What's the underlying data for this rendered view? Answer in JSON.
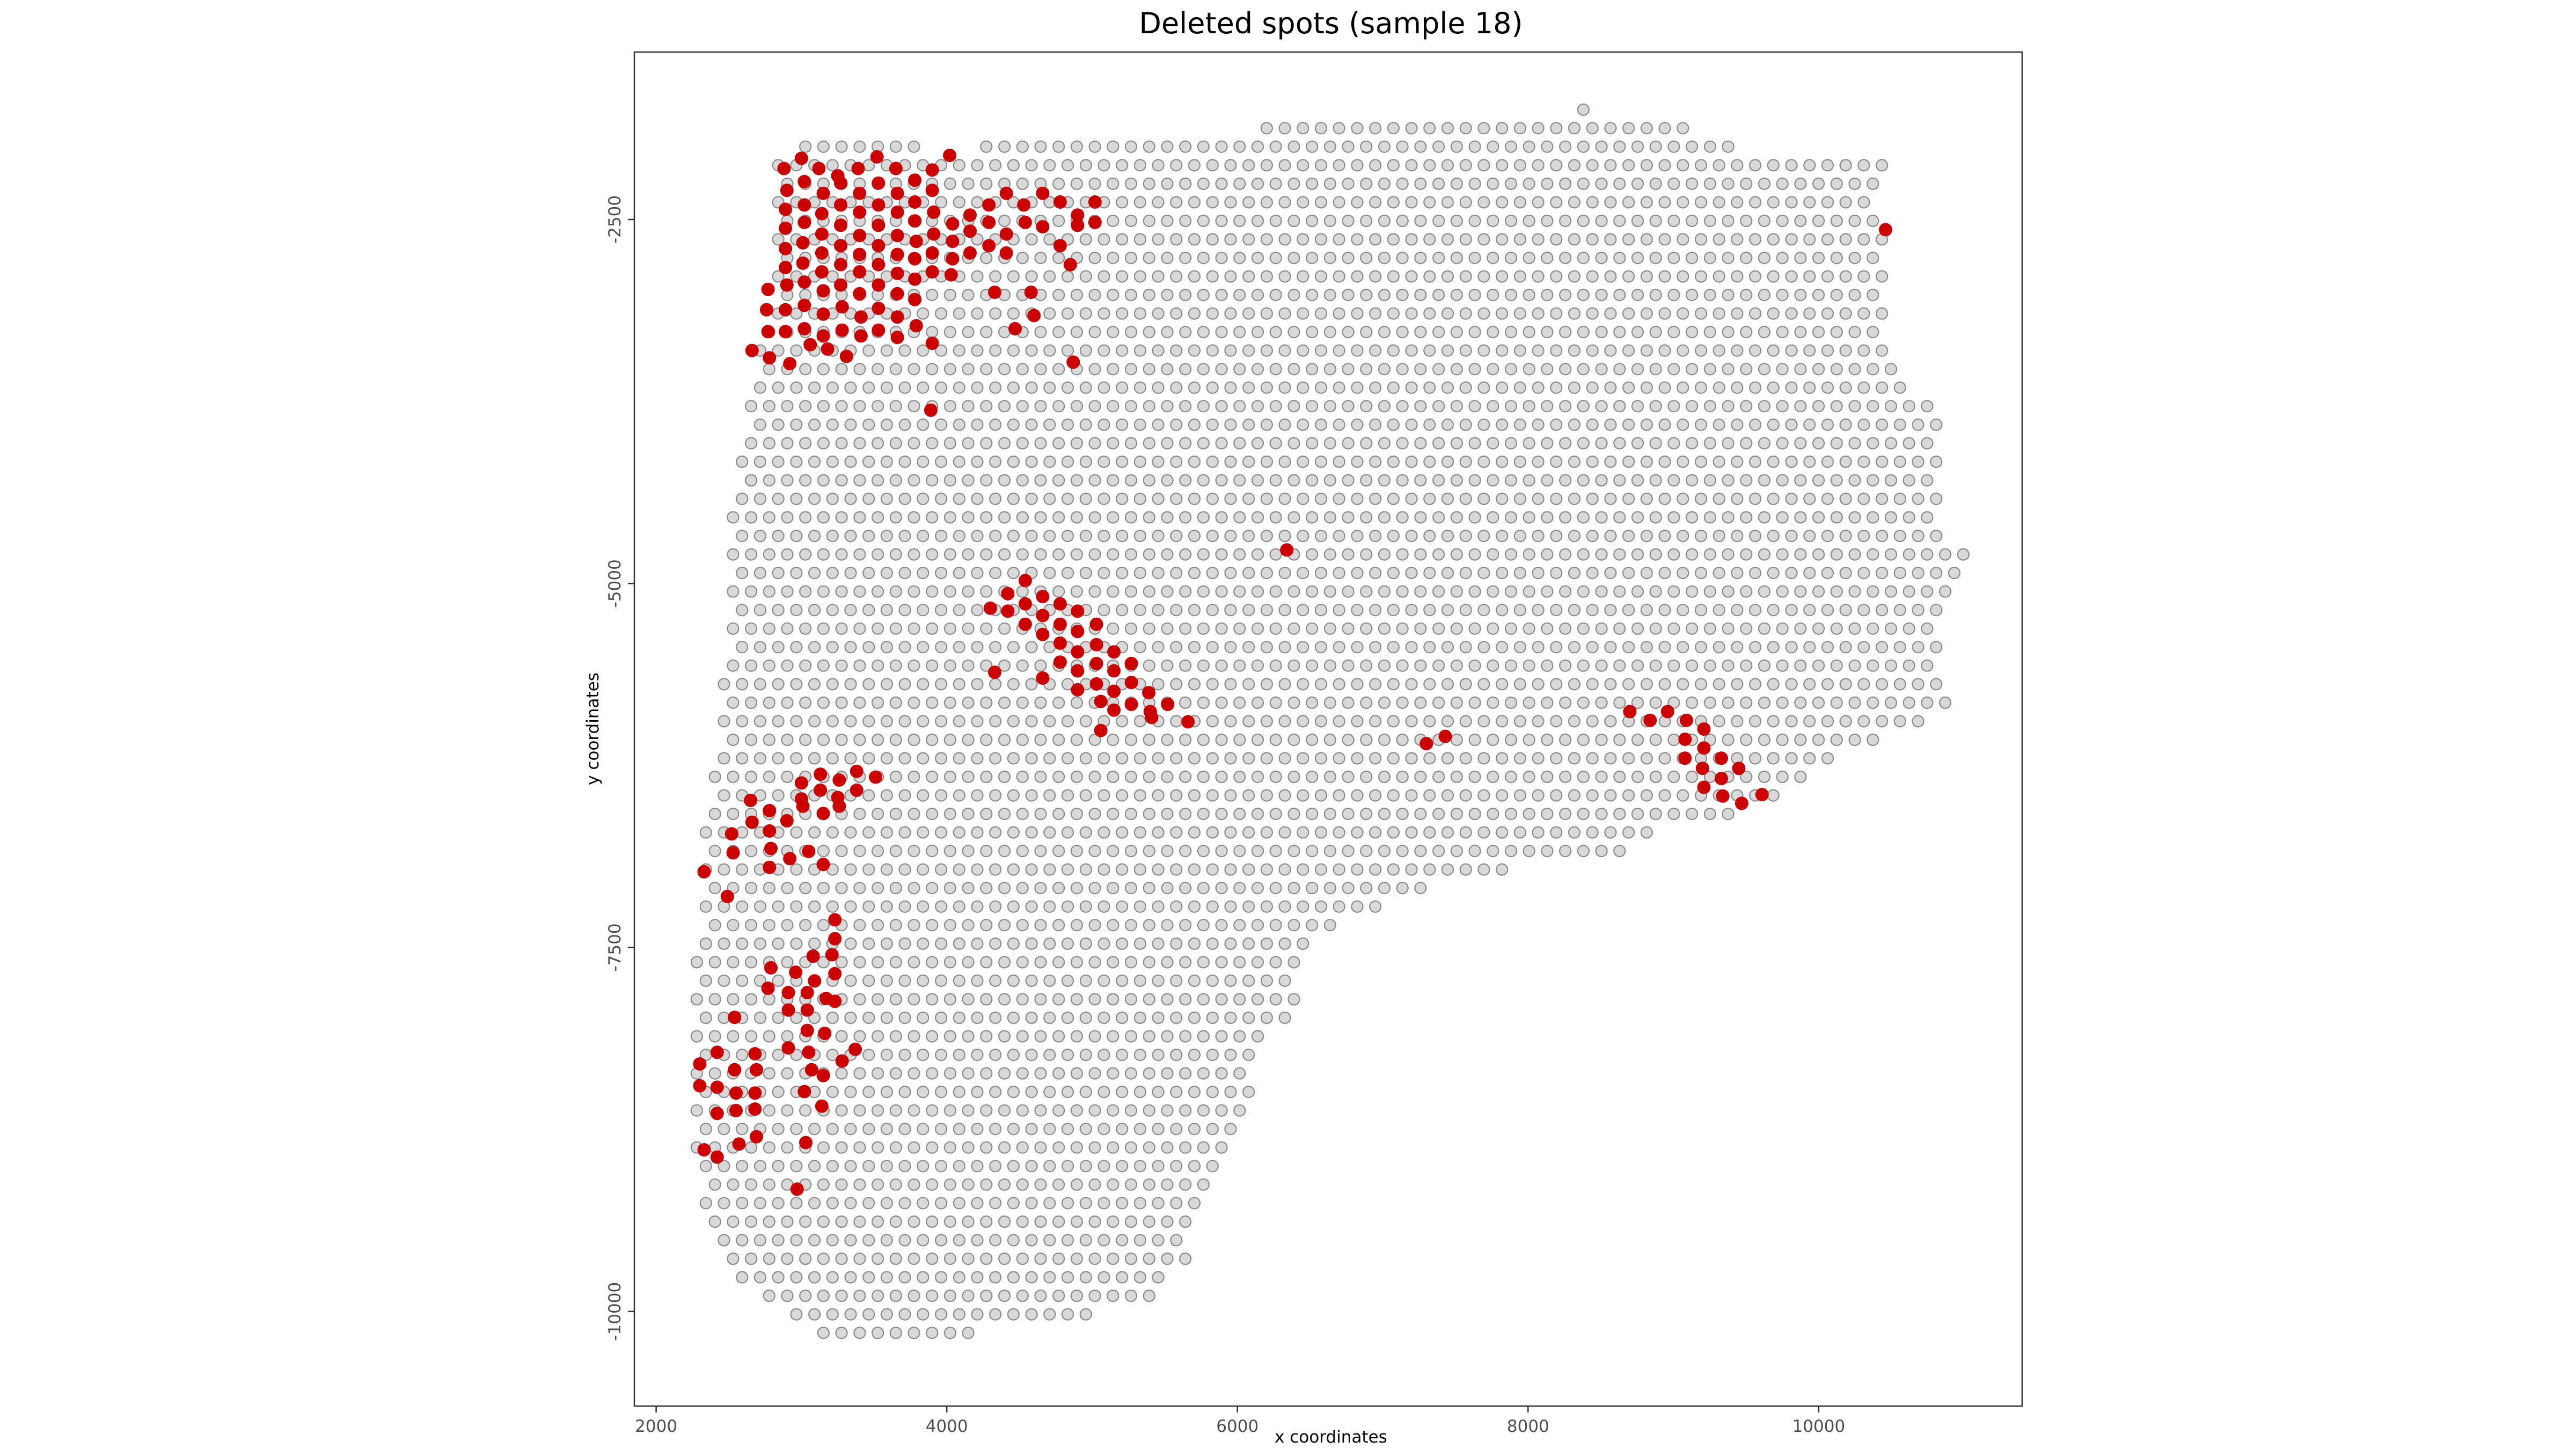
{
  "chart_data": {
    "type": "scatter",
    "title": "Deleted spots (sample 18)",
    "xlabel": "x coordinates",
    "ylabel": "y coordinates",
    "xlim": [
      1850,
      11400
    ],
    "ylim": [
      -10650,
      -1350
    ],
    "xticks": [
      2000,
      4000,
      6000,
      8000,
      10000
    ],
    "yticks": [
      -2500,
      -5000,
      -7500,
      -10000
    ],
    "grid": false,
    "legend": "none",
    "colors": {
      "kept_fill": "#d9d9d9",
      "kept_stroke": "#8c8c8c",
      "deleted_fill": "#cc0000",
      "frame": "#333333",
      "tick": "#333333"
    },
    "series": [
      {
        "role": "deleted",
        "points": [
          [
            2880,
            -2150
          ],
          [
            3000,
            -2080
          ],
          [
            3120,
            -2150
          ],
          [
            3250,
            -2200
          ],
          [
            3390,
            -2150
          ],
          [
            3520,
            -2070
          ],
          [
            3650,
            -2150
          ],
          [
            3780,
            -2230
          ],
          [
            3900,
            -2160
          ],
          [
            4020,
            -2060
          ],
          [
            2900,
            -2300
          ],
          [
            3020,
            -2240
          ],
          [
            3150,
            -2320
          ],
          [
            3270,
            -2250
          ],
          [
            3400,
            -2320
          ],
          [
            3530,
            -2250
          ],
          [
            3660,
            -2320
          ],
          [
            3780,
            -2380
          ],
          [
            3900,
            -2300
          ],
          [
            2890,
            -2430
          ],
          [
            3020,
            -2400
          ],
          [
            3140,
            -2460
          ],
          [
            3270,
            -2400
          ],
          [
            3400,
            -2450
          ],
          [
            3530,
            -2400
          ],
          [
            3660,
            -2450
          ],
          [
            3780,
            -2510
          ],
          [
            3910,
            -2450
          ],
          [
            4040,
            -2530
          ],
          [
            4160,
            -2470
          ],
          [
            4290,
            -2400
          ],
          [
            4410,
            -2320
          ],
          [
            4530,
            -2400
          ],
          [
            4660,
            -2320
          ],
          [
            4780,
            -2380
          ],
          [
            4900,
            -2470
          ],
          [
            5020,
            -2380
          ],
          [
            2890,
            -2560
          ],
          [
            3020,
            -2520
          ],
          [
            3140,
            -2600
          ],
          [
            3270,
            -2540
          ],
          [
            3400,
            -2610
          ],
          [
            3530,
            -2540
          ],
          [
            3660,
            -2610
          ],
          [
            3790,
            -2650
          ],
          [
            3910,
            -2600
          ],
          [
            4040,
            -2650
          ],
          [
            4160,
            -2580
          ],
          [
            4290,
            -2520
          ],
          [
            4410,
            -2600
          ],
          [
            4540,
            -2520
          ],
          [
            4660,
            -2550
          ],
          [
            4900,
            -2540
          ],
          [
            5020,
            -2520
          ],
          [
            2890,
            -2700
          ],
          [
            3010,
            -2660
          ],
          [
            3140,
            -2730
          ],
          [
            3270,
            -2680
          ],
          [
            3400,
            -2740
          ],
          [
            3530,
            -2680
          ],
          [
            3660,
            -2740
          ],
          [
            3780,
            -2770
          ],
          [
            3900,
            -2730
          ],
          [
            4040,
            -2770
          ],
          [
            4160,
            -2730
          ],
          [
            4290,
            -2680
          ],
          [
            4410,
            -2730
          ],
          [
            4780,
            -2680
          ],
          [
            4850,
            -2810
          ],
          [
            2890,
            -2830
          ],
          [
            3010,
            -2800
          ],
          [
            3140,
            -2860
          ],
          [
            3270,
            -2810
          ],
          [
            3400,
            -2860
          ],
          [
            3530,
            -2810
          ],
          [
            3660,
            -2870
          ],
          [
            3780,
            -2910
          ],
          [
            3900,
            -2860
          ],
          [
            4030,
            -2880
          ],
          [
            2770,
            -2980
          ],
          [
            2900,
            -2950
          ],
          [
            3020,
            -2930
          ],
          [
            3150,
            -2990
          ],
          [
            3270,
            -2950
          ],
          [
            3400,
            -3010
          ],
          [
            3530,
            -2950
          ],
          [
            3660,
            -3010
          ],
          [
            3780,
            -3050
          ],
          [
            4330,
            -3000
          ],
          [
            4580,
            -3000
          ],
          [
            2760,
            -3120
          ],
          [
            2890,
            -3120
          ],
          [
            3020,
            -3090
          ],
          [
            3150,
            -3150
          ],
          [
            3280,
            -3100
          ],
          [
            3410,
            -3170
          ],
          [
            3530,
            -3110
          ],
          [
            3660,
            -3170
          ],
          [
            3790,
            -3230
          ],
          [
            4470,
            -3250
          ],
          [
            4600,
            -3160
          ],
          [
            2770,
            -3270
          ],
          [
            2890,
            -3270
          ],
          [
            3020,
            -3250
          ],
          [
            3150,
            -3300
          ],
          [
            3280,
            -3260
          ],
          [
            3410,
            -3300
          ],
          [
            3530,
            -3260
          ],
          [
            3660,
            -3310
          ],
          [
            3900,
            -3350
          ],
          [
            2660,
            -3400
          ],
          [
            2780,
            -3450
          ],
          [
            2920,
            -3490
          ],
          [
            3060,
            -3360
          ],
          [
            3180,
            -3390
          ],
          [
            3310,
            -3440
          ],
          [
            4870,
            -3480
          ],
          [
            3890,
            -3810
          ],
          [
            10460,
            -2570
          ],
          [
            6340,
            -4770
          ],
          [
            4540,
            -4980
          ],
          [
            4420,
            -5070
          ],
          [
            4300,
            -5170
          ],
          [
            4420,
            -5190
          ],
          [
            4540,
            -5140
          ],
          [
            4660,
            -5090
          ],
          [
            4780,
            -5140
          ],
          [
            4900,
            -5190
          ],
          [
            4540,
            -5280
          ],
          [
            4660,
            -5220
          ],
          [
            4780,
            -5280
          ],
          [
            4900,
            -5330
          ],
          [
            5030,
            -5280
          ],
          [
            4660,
            -5350
          ],
          [
            4780,
            -5410
          ],
          [
            4900,
            -5470
          ],
          [
            5030,
            -5420
          ],
          [
            5150,
            -5470
          ],
          [
            4780,
            -5540
          ],
          [
            4900,
            -5600
          ],
          [
            5030,
            -5550
          ],
          [
            5150,
            -5600
          ],
          [
            5270,
            -5550
          ],
          [
            4660,
            -5650
          ],
          [
            4900,
            -5730
          ],
          [
            5030,
            -5690
          ],
          [
            5150,
            -5740
          ],
          [
            5270,
            -5680
          ],
          [
            5390,
            -5750
          ],
          [
            5060,
            -5810
          ],
          [
            5150,
            -5870
          ],
          [
            5270,
            -5830
          ],
          [
            5400,
            -5880
          ],
          [
            5520,
            -5830
          ],
          [
            5660,
            -5950
          ],
          [
            5410,
            -5920
          ],
          [
            5060,
            -6010
          ],
          [
            4330,
            -5610
          ],
          [
            8700,
            -5880
          ],
          [
            8840,
            -5940
          ],
          [
            8960,
            -5880
          ],
          [
            9090,
            -5940
          ],
          [
            9210,
            -6000
          ],
          [
            9080,
            -6070
          ],
          [
            9210,
            -6130
          ],
          [
            9330,
            -6200
          ],
          [
            9080,
            -6200
          ],
          [
            9200,
            -6270
          ],
          [
            9330,
            -6340
          ],
          [
            9450,
            -6270
          ],
          [
            9210,
            -6400
          ],
          [
            9340,
            -6460
          ],
          [
            9470,
            -6510
          ],
          [
            9610,
            -6450
          ],
          [
            7300,
            -6100
          ],
          [
            7430,
            -6050
          ],
          [
            3000,
            -6370
          ],
          [
            3130,
            -6310
          ],
          [
            3260,
            -6350
          ],
          [
            3380,
            -6290
          ],
          [
            3510,
            -6330
          ],
          [
            2650,
            -6490
          ],
          [
            2780,
            -6560
          ],
          [
            3000,
            -6480
          ],
          [
            3130,
            -6420
          ],
          [
            3250,
            -6470
          ],
          [
            3380,
            -6420
          ],
          [
            2660,
            -6640
          ],
          [
            2780,
            -6700
          ],
          [
            2900,
            -6630
          ],
          [
            3010,
            -6530
          ],
          [
            3150,
            -6580
          ],
          [
            3260,
            -6530
          ],
          [
            2790,
            -6820
          ],
          [
            2920,
            -6890
          ],
          [
            3050,
            -6840
          ],
          [
            2520,
            -6720
          ],
          [
            2530,
            -6850
          ],
          [
            2780,
            -6950
          ],
          [
            3150,
            -6930
          ],
          [
            2330,
            -6980
          ],
          [
            2490,
            -7150
          ],
          [
            3230,
            -7310
          ],
          [
            3230,
            -7440
          ],
          [
            3080,
            -7560
          ],
          [
            3210,
            -7550
          ],
          [
            2790,
            -7640
          ],
          [
            2960,
            -7670
          ],
          [
            3090,
            -7730
          ],
          [
            3230,
            -7680
          ],
          [
            2770,
            -7780
          ],
          [
            2910,
            -7810
          ],
          [
            3040,
            -7810
          ],
          [
            3170,
            -7850
          ],
          [
            2910,
            -7930
          ],
          [
            3040,
            -7930
          ],
          [
            3230,
            -7870
          ],
          [
            2540,
            -7980
          ],
          [
            3040,
            -8070
          ],
          [
            3160,
            -8090
          ],
          [
            2910,
            -8190
          ],
          [
            3050,
            -8220
          ],
          [
            3370,
            -8200
          ],
          [
            3280,
            -8280
          ],
          [
            3070,
            -8340
          ],
          [
            2420,
            -8220
          ],
          [
            2680,
            -8230
          ],
          [
            2300,
            -8300
          ],
          [
            2540,
            -8340
          ],
          [
            2690,
            -8340
          ],
          [
            3150,
            -8380
          ],
          [
            3020,
            -8490
          ],
          [
            2300,
            -8450
          ],
          [
            2420,
            -8460
          ],
          [
            2550,
            -8500
          ],
          [
            2680,
            -8500
          ],
          [
            3140,
            -8590
          ],
          [
            2420,
            -8640
          ],
          [
            2550,
            -8620
          ],
          [
            2680,
            -8610
          ],
          [
            2690,
            -8800
          ],
          [
            2570,
            -8850
          ],
          [
            2330,
            -8890
          ],
          [
            2420,
            -8940
          ],
          [
            3030,
            -8840
          ],
          [
            2970,
            -9160
          ]
        ]
      }
    ]
  }
}
